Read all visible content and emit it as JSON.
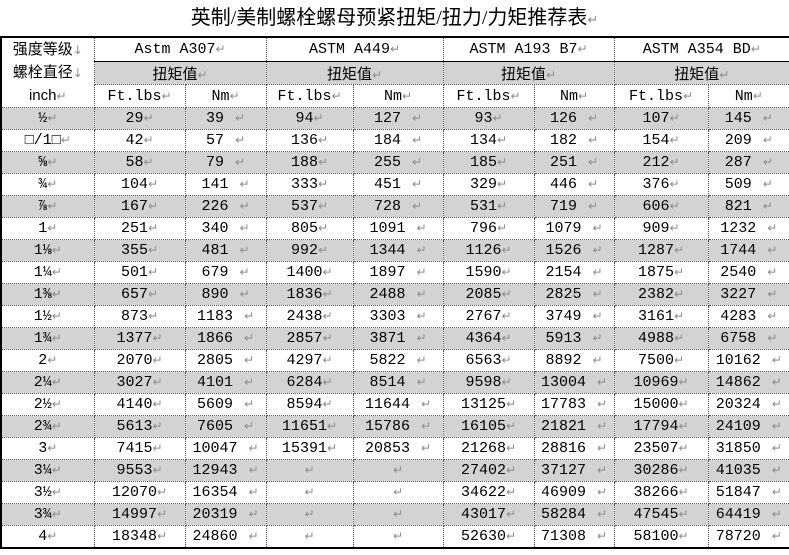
{
  "title": {
    "text": "英制/美制螺栓螺母预紧扭矩/扭力/力矩推荐表"
  },
  "marks": {
    "paragraph_return": "↵",
    "line_break": "↓"
  },
  "colors": {
    "stripe_gray": "#d3d3d3",
    "mark_gray": "#8c8c8c"
  },
  "table": {
    "corner": {
      "line1": "强度等级",
      "line2": "螺栓直径",
      "line3": "inch"
    },
    "grades": [
      {
        "name": "Astm A307"
      },
      {
        "name": "ASTM A449"
      },
      {
        "name": "ASTM A193 B7"
      },
      {
        "name": "ASTM A354 BD"
      }
    ],
    "torque_label": "扭矩值",
    "units": {
      "ftlbs": "Ft.lbs",
      "nm": "Nm"
    },
    "rows": [
      {
        "size": "½",
        "values": [
          29,
          39,
          94,
          127,
          93,
          126,
          107,
          145
        ]
      },
      {
        "size": "□/1□",
        "values": [
          42,
          57,
          136,
          184,
          134,
          182,
          154,
          209
        ]
      },
      {
        "size": "⅝",
        "values": [
          58,
          79,
          188,
          255,
          185,
          251,
          212,
          287
        ]
      },
      {
        "size": "¾",
        "values": [
          104,
          141,
          333,
          451,
          329,
          446,
          376,
          509
        ]
      },
      {
        "size": "⅞",
        "values": [
          167,
          226,
          537,
          728,
          531,
          719,
          606,
          821
        ]
      },
      {
        "size": "1",
        "values": [
          251,
          340,
          805,
          1091,
          796,
          1079,
          909,
          1232
        ]
      },
      {
        "size": "1⅛",
        "values": [
          355,
          481,
          992,
          1344,
          1126,
          1526,
          1287,
          1744
        ]
      },
      {
        "size": "1¼",
        "values": [
          501,
          679,
          1400,
          1897,
          1590,
          2154,
          1875,
          2540
        ]
      },
      {
        "size": "1⅜",
        "values": [
          657,
          890,
          1836,
          2488,
          2085,
          2825,
          2382,
          3227
        ]
      },
      {
        "size": "1½",
        "values": [
          873,
          1183,
          2438,
          3303,
          2767,
          3749,
          3161,
          4283
        ]
      },
      {
        "size": "1¾",
        "values": [
          1377,
          1866,
          2857,
          3871,
          4364,
          5913,
          4988,
          6758
        ]
      },
      {
        "size": "2",
        "values": [
          2070,
          2805,
          4297,
          5822,
          6563,
          8892,
          7500,
          10162
        ]
      },
      {
        "size": "2¼",
        "values": [
          3027,
          4101,
          6284,
          8514,
          9598,
          13004,
          10969,
          14862
        ]
      },
      {
        "size": "2½",
        "values": [
          4140,
          5609,
          8594,
          11644,
          13125,
          17783,
          15000,
          20324
        ]
      },
      {
        "size": "2¾",
        "values": [
          5613,
          7605,
          11651,
          15786,
          16105,
          21821,
          17794,
          24109
        ]
      },
      {
        "size": "3",
        "values": [
          7415,
          10047,
          15391,
          20853,
          21268,
          28816,
          23507,
          31850
        ]
      },
      {
        "size": "3¼",
        "values": [
          9553,
          12943,
          null,
          null,
          27402,
          37127,
          30286,
          41035
        ]
      },
      {
        "size": "3½",
        "values": [
          12070,
          16354,
          null,
          null,
          34622,
          46909,
          38266,
          51847
        ]
      },
      {
        "size": "3¾",
        "values": [
          14997,
          20319,
          null,
          null,
          43017,
          58284,
          47545,
          64419
        ]
      },
      {
        "size": "4",
        "values": [
          18348,
          24860,
          null,
          null,
          52630,
          71308,
          58100,
          78720
        ]
      }
    ]
  }
}
